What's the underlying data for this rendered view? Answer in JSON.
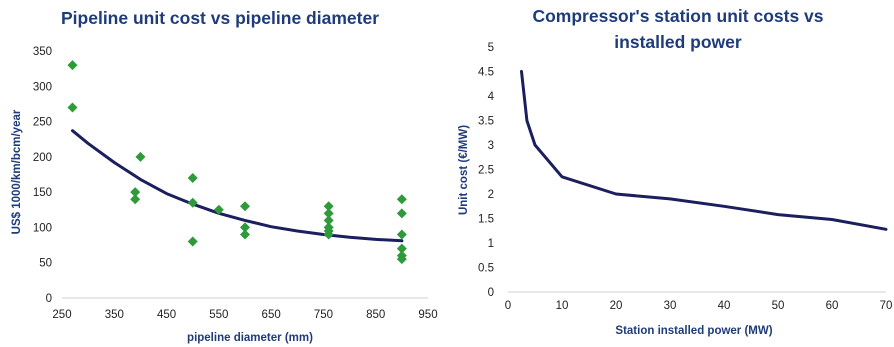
{
  "chart_data": [
    {
      "type": "scatter",
      "title": "Pipeline unit cost vs pipeline diameter",
      "xlabel": "pipeline diameter (mm)",
      "ylabel": "US$ 1000/km/bcm/year",
      "xlim": [
        250,
        950
      ],
      "ylim": [
        0,
        350
      ],
      "xticks": [
        "250",
        "350",
        "450",
        "550",
        "650",
        "750",
        "850",
        "950"
      ],
      "yticks": [
        "0",
        "50",
        "100",
        "150",
        "200",
        "250",
        "300",
        "350"
      ],
      "grid": false,
      "colors": {
        "points": "#2e9a3a",
        "trendline": "#1b1f5e"
      },
      "series": [
        {
          "marker": "diamond",
          "points": [
            [
              270,
              330
            ],
            [
              270,
              270
            ],
            [
              390,
              150
            ],
            [
              390,
              140
            ],
            [
              400,
              200
            ],
            [
              500,
              170
            ],
            [
              500,
              135
            ],
            [
              500,
              80
            ],
            [
              550,
              125
            ],
            [
              600,
              130
            ],
            [
              600,
              100
            ],
            [
              600,
              90
            ],
            [
              760,
              130
            ],
            [
              760,
              120
            ],
            [
              760,
              110
            ],
            [
              760,
              100
            ],
            [
              760,
              95
            ],
            [
              760,
              90
            ],
            [
              900,
              140
            ],
            [
              900,
              120
            ],
            [
              900,
              90
            ],
            [
              900,
              70
            ],
            [
              900,
              60
            ],
            [
              900,
              55
            ]
          ]
        },
        {
          "line": true,
          "points": [
            [
              270,
              237
            ],
            [
              300,
              219
            ],
            [
              350,
              192
            ],
            [
              400,
              168
            ],
            [
              450,
              148
            ],
            [
              500,
              133
            ],
            [
              550,
              120
            ],
            [
              600,
              110
            ],
            [
              650,
              101
            ],
            [
              700,
              95
            ],
            [
              750,
              90
            ],
            [
              800,
              86
            ],
            [
              850,
              83
            ],
            [
              900,
              81
            ]
          ]
        }
      ]
    },
    {
      "type": "line",
      "title": "Compressor's station unit costs vs installed power",
      "xlabel": "Station installed power (MW)",
      "ylabel": "Unit cost (€/MW)",
      "xlim": [
        0,
        70
      ],
      "ylim": [
        0,
        5
      ],
      "xticks": [
        "0",
        "10",
        "20",
        "30",
        "40",
        "50",
        "60",
        "70"
      ],
      "yticks": [
        "0",
        "0.5",
        "1",
        "1.5",
        "2",
        "2.5",
        "3",
        "3.5",
        "4",
        "4.5",
        "5"
      ],
      "grid": false,
      "colors": {
        "line": "#1b1f5e"
      },
      "series": [
        {
          "x": [
            2.5,
            3.5,
            5,
            10,
            20,
            30,
            40,
            50,
            60,
            70
          ],
          "y": [
            4.5,
            3.5,
            3.0,
            2.35,
            2.0,
            1.9,
            1.75,
            1.58,
            1.48,
            1.28
          ]
        }
      ]
    }
  ]
}
